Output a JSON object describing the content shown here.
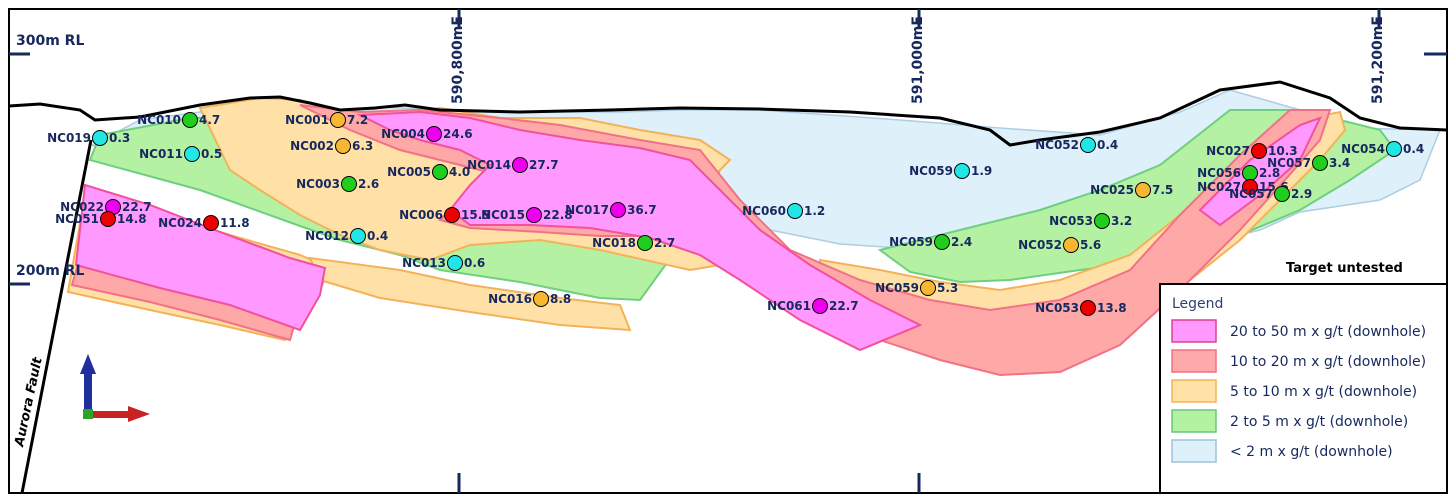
{
  "grid": {
    "rl_300": "300m RL",
    "rl_200": "200m RL",
    "easting_1": "590,800mE",
    "easting_2": "591,000mE",
    "easting_3": "591,200mE"
  },
  "annotations": {
    "fault": "Aurora Fault",
    "target_untested": "Target untested"
  },
  "legend": {
    "title": "Legend",
    "items": [
      {
        "label": "20 to 50 m x g/t (downhole)",
        "color": "#ff99ff",
        "border": "#e0408f"
      },
      {
        "label": "10 to 20 m x g/t (downhole)",
        "color": "#ffaaaa",
        "border": "#f07080"
      },
      {
        "label": "5 to 10 m x g/t (downhole)",
        "color": "#ffe3a6",
        "border": "#f2b455"
      },
      {
        "label": "2 to 5 m x g/t (downhole)",
        "color": "#b3f2a0",
        "border": "#66c87a"
      },
      {
        "label": " < 2 m x g/t (downhole)",
        "color": "#def0fa",
        "border": "#9fc2dc"
      }
    ]
  },
  "marker_colors": {
    "magenta": "#ee00ee",
    "red": "#ee0000",
    "orange": "#f7b733",
    "green": "#1fce1f",
    "cyan": "#22e5e5"
  },
  "drillholes": [
    {
      "id": "NC010",
      "value": "4.7",
      "grade": "green"
    },
    {
      "id": "NC019",
      "value": "0.3",
      "grade": "cyan"
    },
    {
      "id": "NC011",
      "value": "0.5",
      "grade": "cyan"
    },
    {
      "id": "NC022",
      "value": "22.7",
      "grade": "magenta"
    },
    {
      "id": "NC051",
      "value": "14.8",
      "grade": "red"
    },
    {
      "id": "NC024",
      "value": "11.8",
      "grade": "red"
    },
    {
      "id": "NC001",
      "value": "7.2",
      "grade": "orange"
    },
    {
      "id": "NC002",
      "value": "6.3",
      "grade": "orange"
    },
    {
      "id": "NC003",
      "value": "2.6",
      "grade": "green"
    },
    {
      "id": "NC004",
      "value": "24.6",
      "grade": "magenta"
    },
    {
      "id": "NC005",
      "value": "4.0",
      "grade": "green"
    },
    {
      "id": "NC014",
      "value": "27.7",
      "grade": "magenta"
    },
    {
      "id": "NC006",
      "value": "15.9",
      "grade": "red"
    },
    {
      "id": "NC015",
      "value": "22.8",
      "grade": "magenta"
    },
    {
      "id": "NC017",
      "value": "36.7",
      "grade": "magenta"
    },
    {
      "id": "NC012",
      "value": "0.4",
      "grade": "cyan"
    },
    {
      "id": "NC013",
      "value": "0.6",
      "grade": "cyan"
    },
    {
      "id": "NC018",
      "value": "2.7",
      "grade": "green"
    },
    {
      "id": "NC016",
      "value": "8.8",
      "grade": "orange"
    },
    {
      "id": "NC060",
      "value": "1.2",
      "grade": "cyan"
    },
    {
      "id": "NC061",
      "value": "22.7",
      "grade": "magenta"
    },
    {
      "id": "NC059",
      "value": "1.9",
      "grade": "cyan"
    },
    {
      "id": "NC059",
      "value": "2.4",
      "grade": "green"
    },
    {
      "id": "NC059",
      "value": "5.3",
      "grade": "orange"
    },
    {
      "id": "NC052",
      "value": "0.4",
      "grade": "cyan"
    },
    {
      "id": "NC025",
      "value": "7.5",
      "grade": "orange"
    },
    {
      "id": "NC053",
      "value": "3.2",
      "grade": "green"
    },
    {
      "id": "NC052",
      "value": "5.6",
      "grade": "orange"
    },
    {
      "id": "NC053",
      "value": "13.8",
      "grade": "red"
    },
    {
      "id": "NC027",
      "value": "10.3",
      "grade": "red"
    },
    {
      "id": "NC057",
      "value": "3.4",
      "grade": "green"
    },
    {
      "id": "NC056",
      "value": "2.8",
      "grade": "green"
    },
    {
      "id": "NC027",
      "value": "15.6",
      "grade": "red"
    },
    {
      "id": "NC057",
      "value": "2.9",
      "grade": "green"
    },
    {
      "id": "NC054",
      "value": "0.4",
      "grade": "cyan"
    }
  ]
}
